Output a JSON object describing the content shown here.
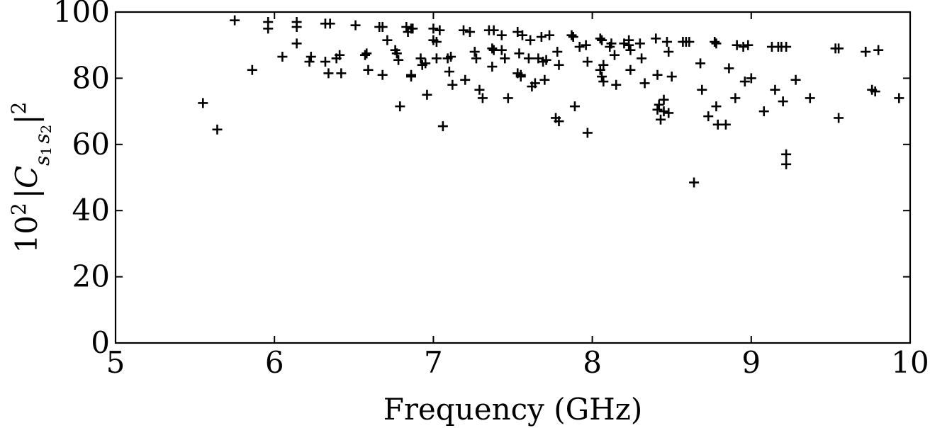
{
  "chart_data": {
    "type": "scatter",
    "title": "",
    "xlabel": "Frequency (GHz)",
    "ylabel_parts": {
      "coef": "10",
      "coef_exp": "2",
      "bar_left": "|",
      "C": "C",
      "sub1": "s",
      "sub1_idx": "1",
      "sub2": "s",
      "sub2_idx": "2",
      "bar_right": "|",
      "exp": "2"
    },
    "xlim": [
      5,
      10
    ],
    "ylim": [
      0,
      100
    ],
    "xticks": [
      "5",
      "6",
      "7",
      "8",
      "9",
      "10"
    ],
    "yticks": [
      "0",
      "20",
      "40",
      "60",
      "80",
      "100"
    ],
    "grid": false,
    "marker": "+",
    "colors": {
      "marker": "#000000",
      "axes": "#000000"
    },
    "points": [
      [
        5.55,
        72.5
      ],
      [
        5.64,
        64.5
      ],
      [
        5.75,
        97.5
      ],
      [
        5.86,
        82.5
      ],
      [
        5.96,
        95
      ],
      [
        5.96,
        97
      ],
      [
        6.05,
        86.5
      ],
      [
        6.14,
        95.5
      ],
      [
        6.14,
        97
      ],
      [
        6.14,
        90.5
      ],
      [
        6.22,
        85
      ],
      [
        6.23,
        86.5
      ],
      [
        6.32,
        96.5
      ],
      [
        6.32,
        85
      ],
      [
        6.34,
        81.5
      ],
      [
        6.35,
        96.5
      ],
      [
        6.39,
        86
      ],
      [
        6.41,
        87
      ],
      [
        6.42,
        81.5
      ],
      [
        6.51,
        96
      ],
      [
        6.57,
        87
      ],
      [
        6.58,
        87.5
      ],
      [
        6.59,
        82.5
      ],
      [
        6.66,
        95.5
      ],
      [
        6.68,
        81
      ],
      [
        6.68,
        95.5
      ],
      [
        6.71,
        91.5
      ],
      [
        6.76,
        88.5
      ],
      [
        6.77,
        87.5
      ],
      [
        6.78,
        85.5
      ],
      [
        6.79,
        71.5
      ],
      [
        6.83,
        95.5
      ],
      [
        6.84,
        94
      ],
      [
        6.86,
        95
      ],
      [
        6.87,
        95
      ],
      [
        6.86,
        81
      ],
      [
        6.86,
        80.5
      ],
      [
        6.92,
        86
      ],
      [
        6.93,
        84
      ],
      [
        6.95,
        84.5
      ],
      [
        6.96,
        75
      ],
      [
        7,
        91.5
      ],
      [
        7,
        95
      ],
      [
        7.02,
        91
      ],
      [
        7.02,
        86
      ],
      [
        7.04,
        94.5
      ],
      [
        7.06,
        65.5
      ],
      [
        7.09,
        86
      ],
      [
        7.11,
        86.5
      ],
      [
        7.1,
        82
      ],
      [
        7.12,
        78
      ],
      [
        7.19,
        94.5
      ],
      [
        7.2,
        79.5
      ],
      [
        7.23,
        94
      ],
      [
        7.26,
        88
      ],
      [
        7.27,
        86
      ],
      [
        7.29,
        76.5
      ],
      [
        7.31,
        74
      ],
      [
        7.35,
        94.5
      ],
      [
        7.37,
        83.5
      ],
      [
        7.37,
        89
      ],
      [
        7.38,
        88.5
      ],
      [
        7.38,
        94.5
      ],
      [
        7.43,
        93
      ],
      [
        7.43,
        88.5
      ],
      [
        7.45,
        86
      ],
      [
        7.47,
        74
      ],
      [
        7.53,
        94
      ],
      [
        7.53,
        81.5
      ],
      [
        7.54,
        87.5
      ],
      [
        7.55,
        81
      ],
      [
        7.56,
        93
      ],
      [
        7.55,
        80.5
      ],
      [
        7.6,
        86
      ],
      [
        7.61,
        91.5
      ],
      [
        7.62,
        77.5
      ],
      [
        7.64,
        78.5
      ],
      [
        7.66,
        86
      ],
      [
        7.68,
        92.5
      ],
      [
        7.69,
        85
      ],
      [
        7.7,
        79.5
      ],
      [
        7.71,
        85.5
      ],
      [
        7.73,
        93
      ],
      [
        7.77,
        68
      ],
      [
        7.78,
        88
      ],
      [
        7.79,
        84
      ],
      [
        7.79,
        67
      ],
      [
        7.87,
        93
      ],
      [
        7.88,
        92.5
      ],
      [
        7.89,
        71.5
      ],
      [
        7.92,
        89.5
      ],
      [
        7.96,
        90
      ],
      [
        7.97,
        85
      ],
      [
        7.97,
        63.5
      ],
      [
        8.05,
        92
      ],
      [
        8.05,
        82.5
      ],
      [
        8.06,
        91.5
      ],
      [
        8.06,
        80.5
      ],
      [
        8.07,
        79
      ],
      [
        8.07,
        84
      ],
      [
        8.11,
        89.5
      ],
      [
        8.12,
        90.5
      ],
      [
        8.14,
        87
      ],
      [
        8.15,
        78
      ],
      [
        8.2,
        90.5
      ],
      [
        8.23,
        90
      ],
      [
        8.23,
        91.5
      ],
      [
        8.24,
        82.5
      ],
      [
        8.24,
        88.5
      ],
      [
        8.3,
        90.5
      ],
      [
        8.31,
        86
      ],
      [
        8.33,
        78.5
      ],
      [
        8.4,
        92
      ],
      [
        8.41,
        81
      ],
      [
        8.41,
        70.5
      ],
      [
        8.42,
        72
      ],
      [
        8.43,
        67.5
      ],
      [
        8.45,
        70
      ],
      [
        8.45,
        73.5
      ],
      [
        8.47,
        91
      ],
      [
        8.48,
        88
      ],
      [
        8.48,
        69.5
      ],
      [
        8.5,
        80.5
      ],
      [
        8.57,
        91
      ],
      [
        8.59,
        91
      ],
      [
        8.61,
        91
      ],
      [
        8.64,
        48.5
      ],
      [
        8.68,
        84.5
      ],
      [
        8.69,
        76.5
      ],
      [
        8.73,
        68.5
      ],
      [
        8.77,
        91
      ],
      [
        8.78,
        90.5
      ],
      [
        8.78,
        71.5
      ],
      [
        8.79,
        66
      ],
      [
        8.84,
        66
      ],
      [
        8.86,
        83
      ],
      [
        8.9,
        74
      ],
      [
        8.91,
        90
      ],
      [
        8.95,
        89.5
      ],
      [
        8.96,
        79
      ],
      [
        8.98,
        90
      ],
      [
        9,
        80
      ],
      [
        9.08,
        70
      ],
      [
        9.13,
        89.5
      ],
      [
        9.15,
        76.5
      ],
      [
        9.17,
        89.5
      ],
      [
        9.19,
        89.5
      ],
      [
        9.2,
        73
      ],
      [
        9.22,
        89.5
      ],
      [
        9.22,
        57
      ],
      [
        9.22,
        54
      ],
      [
        9.28,
        79.5
      ],
      [
        9.37,
        74
      ],
      [
        9.53,
        89
      ],
      [
        9.55,
        89
      ],
      [
        9.55,
        68
      ],
      [
        9.72,
        88
      ],
      [
        9.76,
        76.5
      ],
      [
        9.78,
        76
      ],
      [
        9.8,
        88.5
      ],
      [
        9.93,
        74
      ]
    ]
  }
}
